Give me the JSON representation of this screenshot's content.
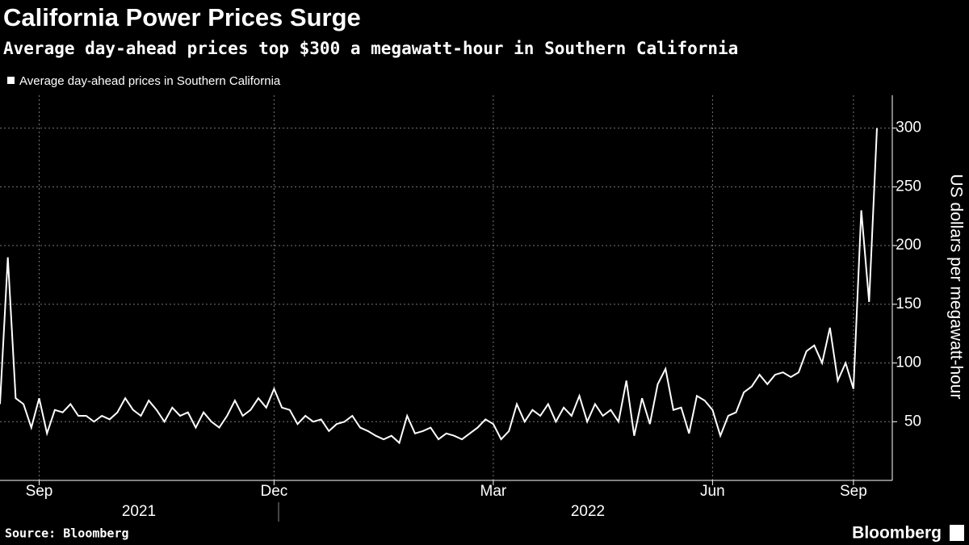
{
  "chart_data": {
    "type": "line",
    "title": "California Power Prices Surge",
    "subtitle": "Average day-ahead prices top $300 a megawatt-hour in Southern California",
    "y_label": "US dollars per megawatt-hour",
    "source": "Source: Bloomberg",
    "brand": "Bloomberg",
    "years": [
      "2021",
      "2022"
    ],
    "categories": [
      null,
      null,
      null,
      null,
      null,
      "Sep",
      null,
      null,
      null,
      null,
      null,
      null,
      null,
      null,
      null,
      null,
      null,
      null,
      null,
      null,
      null,
      null,
      null,
      null,
      null,
      null,
      null,
      null,
      null,
      null,
      null,
      null,
      null,
      null,
      null,
      "Dec",
      null,
      null,
      null,
      null,
      null,
      null,
      null,
      null,
      null,
      null,
      null,
      null,
      null,
      null,
      null,
      null,
      null,
      null,
      null,
      null,
      null,
      null,
      null,
      null,
      null,
      null,
      null,
      "Mar",
      null,
      null,
      null,
      null,
      null,
      null,
      null,
      null,
      null,
      null,
      null,
      null,
      null,
      null,
      null,
      null,
      null,
      null,
      null,
      null,
      null,
      null,
      null,
      null,
      null,
      null,
      null,
      "Jun",
      null,
      null,
      null,
      null,
      null,
      null,
      null,
      null,
      null,
      null,
      null,
      null,
      null,
      null,
      null,
      null,
      null,
      "Sep",
      null,
      null,
      null
    ],
    "series": [
      {
        "name": "Average day-ahead prices in Southern California",
        "color": "#ffffff",
        "values": [
          65,
          190,
          70,
          65,
          45,
          70,
          40,
          60,
          58,
          65,
          55,
          55,
          50,
          55,
          52,
          58,
          70,
          60,
          55,
          68,
          60,
          50,
          62,
          55,
          58,
          45,
          58,
          50,
          45,
          55,
          68,
          55,
          60,
          70,
          62,
          78,
          62,
          60,
          48,
          55,
          50,
          52,
          42,
          48,
          50,
          55,
          45,
          42,
          38,
          35,
          38,
          32,
          55,
          40,
          42,
          45,
          35,
          40,
          38,
          35,
          40,
          45,
          52,
          48,
          35,
          42,
          65,
          50,
          60,
          55,
          65,
          50,
          62,
          55,
          72,
          50,
          65,
          55,
          60,
          50,
          85,
          38,
          70,
          48,
          82,
          95,
          60,
          62,
          40,
          72,
          68,
          60,
          38,
          55,
          58,
          75,
          80,
          90,
          82,
          90,
          92,
          88,
          92,
          110,
          115,
          100,
          130,
          85,
          100,
          78,
          230,
          152,
          300
        ]
      }
    ],
    "ylim": [
      0,
      328
    ],
    "yticks": [
      50,
      100,
      150,
      200,
      250,
      300
    ],
    "grid": true,
    "legend": "top-left"
  }
}
